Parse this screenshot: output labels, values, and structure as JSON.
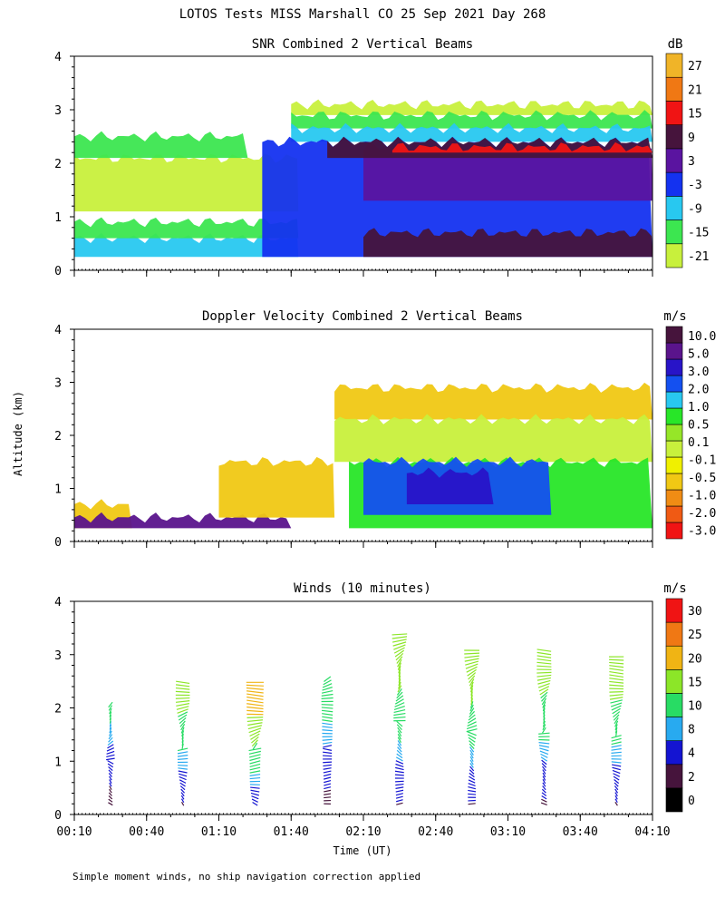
{
  "page_title": "LOTOS Tests MISS Marshall CO  25 Sep 2021 Day 268",
  "footnote": "Simple moment winds, no ship navigation correction applied",
  "colors": {
    "snr_scale": [
      "#c8f03c",
      "#3ce650",
      "#28c8f0",
      "#1432f0",
      "#5a14a0",
      "#46143c",
      "#f01414",
      "#f07814",
      "#f0b428"
    ],
    "doppler_scale": [
      "#f01414",
      "#f05a14",
      "#f08c14",
      "#f0c814",
      "#f0f000",
      "#c8f03c",
      "#96e628",
      "#28e628",
      "#28c8f0",
      "#1450f0",
      "#2814c8",
      "#5a148c",
      "#46143c"
    ],
    "wind_scale": [
      "#000000",
      "#46143c",
      "#1414d2",
      "#28aaf0",
      "#28dc64",
      "#8ce628",
      "#f0b414",
      "#f07814",
      "#f01414"
    ]
  },
  "chart_data": [
    {
      "type": "heatmap",
      "title": "SNR Combined 2 Vertical Beams",
      "ylabel": "",
      "xlabel": "",
      "ylim": [
        0,
        4
      ],
      "xlim": [
        "00:10",
        "04:10"
      ],
      "yticks": [
        "0",
        "1",
        "2",
        "3",
        "4"
      ],
      "colorbar": {
        "unit": "dB",
        "labels": [
          "27",
          "21",
          "15",
          "9",
          "3",
          "-3",
          "-9",
          "-15",
          "-21"
        ]
      },
      "regions": [
        {
          "t0": 0,
          "t1": 1.55,
          "z0": 0.25,
          "z1": 0.6,
          "level": "-9"
        },
        {
          "t0": 0,
          "t1": 1.55,
          "z0": 0.6,
          "z1": 0.9,
          "level": "-15"
        },
        {
          "t0": 0,
          "t1": 1.55,
          "z0": 1.1,
          "z1": 2.1,
          "level": "-21"
        },
        {
          "t0": 0,
          "t1": 1.2,
          "z0": 2.1,
          "z1": 2.5,
          "level": "-15"
        },
        {
          "t0": 1.5,
          "t1": 4.0,
          "z0": 2.9,
          "z1": 3.1,
          "level": "-21"
        },
        {
          "t0": 1.5,
          "t1": 4.0,
          "z0": 2.65,
          "z1": 2.9,
          "level": "-15"
        },
        {
          "t0": 1.5,
          "t1": 4.0,
          "z0": 2.4,
          "z1": 2.65,
          "level": "-9"
        },
        {
          "t0": 1.3,
          "t1": 4.0,
          "z0": 0.25,
          "z1": 2.4,
          "level": "-3"
        },
        {
          "t0": 2.0,
          "t1": 4.0,
          "z0": 1.3,
          "z1": 2.3,
          "level": "3"
        },
        {
          "t0": 2.0,
          "t1": 4.0,
          "z0": 0.25,
          "z1": 0.7,
          "level": "9"
        },
        {
          "t0": 1.75,
          "t1": 4.0,
          "z0": 2.1,
          "z1": 2.4,
          "level": "9"
        },
        {
          "t0": 2.2,
          "t1": 4.0,
          "z0": 2.2,
          "z1": 2.3,
          "level": "15"
        }
      ]
    },
    {
      "type": "heatmap",
      "title": "Doppler Velocity Combined 2 Vertical Beams",
      "ylabel": "Altitude (km)",
      "xlabel": "",
      "ylim": [
        0,
        4
      ],
      "xlim": [
        "00:10",
        "04:10"
      ],
      "yticks": [
        "0",
        "1",
        "2",
        "3",
        "4"
      ],
      "colorbar": {
        "unit": "m/s",
        "labels": [
          "10.0",
          "5.0",
          "3.0",
          "2.0",
          "1.0",
          "0.5",
          "0.1",
          "-0.1",
          "-0.5",
          "-1.0",
          "-2.0",
          "-3.0"
        ]
      },
      "regions": [
        {
          "t0": 0,
          "t1": 0.4,
          "z0": 0.25,
          "z1": 0.7,
          "level": "-0.5"
        },
        {
          "t0": 0,
          "t1": 1.5,
          "z0": 0.25,
          "z1": 0.45,
          "level": "5.0"
        },
        {
          "t0": 1.0,
          "t1": 1.8,
          "z0": 0.45,
          "z1": 1.5,
          "level": "-0.5"
        },
        {
          "t0": 1.8,
          "t1": 4.0,
          "z0": 2.3,
          "z1": 2.9,
          "level": "-0.5"
        },
        {
          "t0": 1.8,
          "t1": 4.0,
          "z0": 1.5,
          "z1": 2.3,
          "level": "0.1"
        },
        {
          "t0": 1.9,
          "t1": 4.0,
          "z0": 0.25,
          "z1": 1.5,
          "level": "0.5"
        },
        {
          "t0": 2.0,
          "t1": 3.3,
          "z0": 0.5,
          "z1": 1.5,
          "level": "2.0"
        },
        {
          "t0": 2.3,
          "t1": 2.9,
          "z0": 0.7,
          "z1": 1.3,
          "level": "3.0"
        }
      ]
    },
    {
      "type": "scatter",
      "title": "Winds (10 minutes)",
      "ylabel": "",
      "xlabel": "Time (UT)",
      "ylim": [
        0,
        4
      ],
      "xlim": [
        "00:10",
        "04:10"
      ],
      "yticks": [
        "0",
        "1",
        "2",
        "3",
        "4"
      ],
      "xticks": [
        "00:10",
        "00:40",
        "01:10",
        "01:40",
        "02:10",
        "02:40",
        "03:10",
        "03:40",
        "04:10"
      ],
      "colorbar": {
        "unit": "m/s",
        "labels": [
          "30",
          "25",
          "20",
          "15",
          "10",
          "8",
          "4",
          "2",
          "0"
        ]
      },
      "profiles": [
        {
          "time_h": 0.25,
          "top_km": 2.05,
          "max_speed": 10
        },
        {
          "time_h": 0.75,
          "top_km": 2.45,
          "max_speed": 16
        },
        {
          "time_h": 1.25,
          "top_km": 2.45,
          "max_speed": 22
        },
        {
          "time_h": 1.75,
          "top_km": 2.55,
          "max_speed": 12
        },
        {
          "time_h": 2.25,
          "top_km": 3.4,
          "max_speed": 18
        },
        {
          "time_h": 2.75,
          "top_km": 3.1,
          "max_speed": 18
        },
        {
          "time_h": 3.25,
          "top_km": 3.1,
          "max_speed": 17
        },
        {
          "time_h": 3.75,
          "top_km": 2.95,
          "max_speed": 17
        }
      ]
    }
  ]
}
